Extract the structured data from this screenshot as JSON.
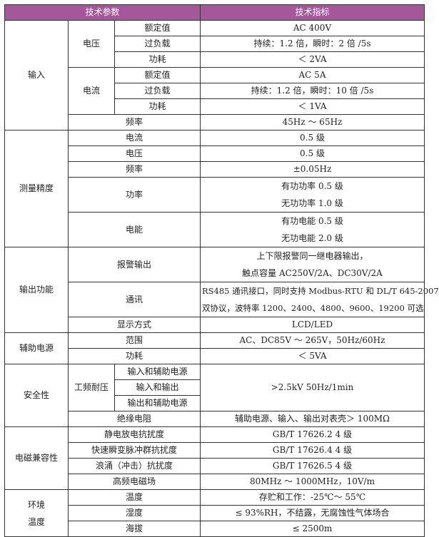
{
  "header": {
    "param": "技术参数",
    "spec": "技术指标",
    "color": "#a5579b"
  },
  "input": {
    "label": "输入",
    "voltage": {
      "label": "电压",
      "rated": "额定值",
      "rated_val": "AC 400V",
      "overload": "过负载",
      "overload_val": "持续：1.2 倍，瞬时：2 倍 /5s",
      "power": "功耗",
      "power_val": "＜ 2VA"
    },
    "current": {
      "label": "电流",
      "rated": "额定值",
      "rated_val": "AC 5A",
      "overload": "过负载",
      "overload_val": "持续：1.2 倍，瞬时：10 倍 /5s",
      "power": "功耗",
      "power_val": "＜ 1VA"
    },
    "freq": "频率",
    "freq_val": "45Hz ～ 65Hz"
  },
  "accuracy": {
    "label": "测量精度",
    "current": "电流",
    "current_val": "0.5 级",
    "voltage": "电压",
    "voltage_val": "0.5 级",
    "freq": "频率",
    "freq_val": "±0.05Hz",
    "power": "功率",
    "power_val1": "有功功率 0.5 级",
    "power_val2": "无功功率 1.0 级",
    "energy": "电能",
    "energy_val1": "有功电能 0.5 级",
    "energy_val2": "无功电能 2.0 级"
  },
  "output": {
    "label": "输出功能",
    "alarm": "报警输出",
    "alarm_val1": "上下限报警同一继电器输出，",
    "alarm_val2": "触点容量 AC250V/2A、DC30V/2A",
    "comm": "通讯",
    "comm_val1": "RS485 通讯接口，同时支持 Modbus-RTU 和 DL/T 645-2007",
    "comm_val2": "双协议，波特率 1200、2400、4800、9600、19200 可选",
    "display": "显示方式",
    "display_val": "LCD/LED"
  },
  "aux": {
    "label": "辅助电源",
    "range": "范围",
    "range_val": "AC、DC85V ～ 265V，50Hz/60Hz",
    "power": "功耗",
    "power_val": "＜ 5VA"
  },
  "safety": {
    "label": "安全性",
    "withstand": "工频耐压",
    "w1": "输入和辅助电源",
    "w2": "输入和输出",
    "w3": "输出和辅助电源",
    "withstand_val": ">2.5kV 50Hz/1min",
    "insulation": "绝缘电阻",
    "insulation_val": "辅助电源、输入、输出对表壳＞ 100MΩ"
  },
  "emc": {
    "label": "电磁兼容性",
    "esd": "静电放电抗扰度",
    "esd_val": "GB/T 17626.2 4 级",
    "eft": "快速瞬变脉冲群抗扰度",
    "eft_val": "GB/T 17626.4 4 级",
    "surge": "浪涌（冲击）抗扰度",
    "surge_val": "GB/T 17626.5 4 级",
    "rf": "高频电磁场",
    "rf_val": "80MHz ～ 1000MHz，10V/m"
  },
  "env": {
    "label1": "环境",
    "label2": "温度",
    "temp": "温度",
    "temp_val": "存贮和工作：-25℃～ 55℃",
    "humidity": "湿度",
    "humidity_val": "≤ 93%RH，不结露，无腐蚀性气体场合",
    "altitude": "海拔",
    "altitude_val": "≤ 2500m"
  }
}
